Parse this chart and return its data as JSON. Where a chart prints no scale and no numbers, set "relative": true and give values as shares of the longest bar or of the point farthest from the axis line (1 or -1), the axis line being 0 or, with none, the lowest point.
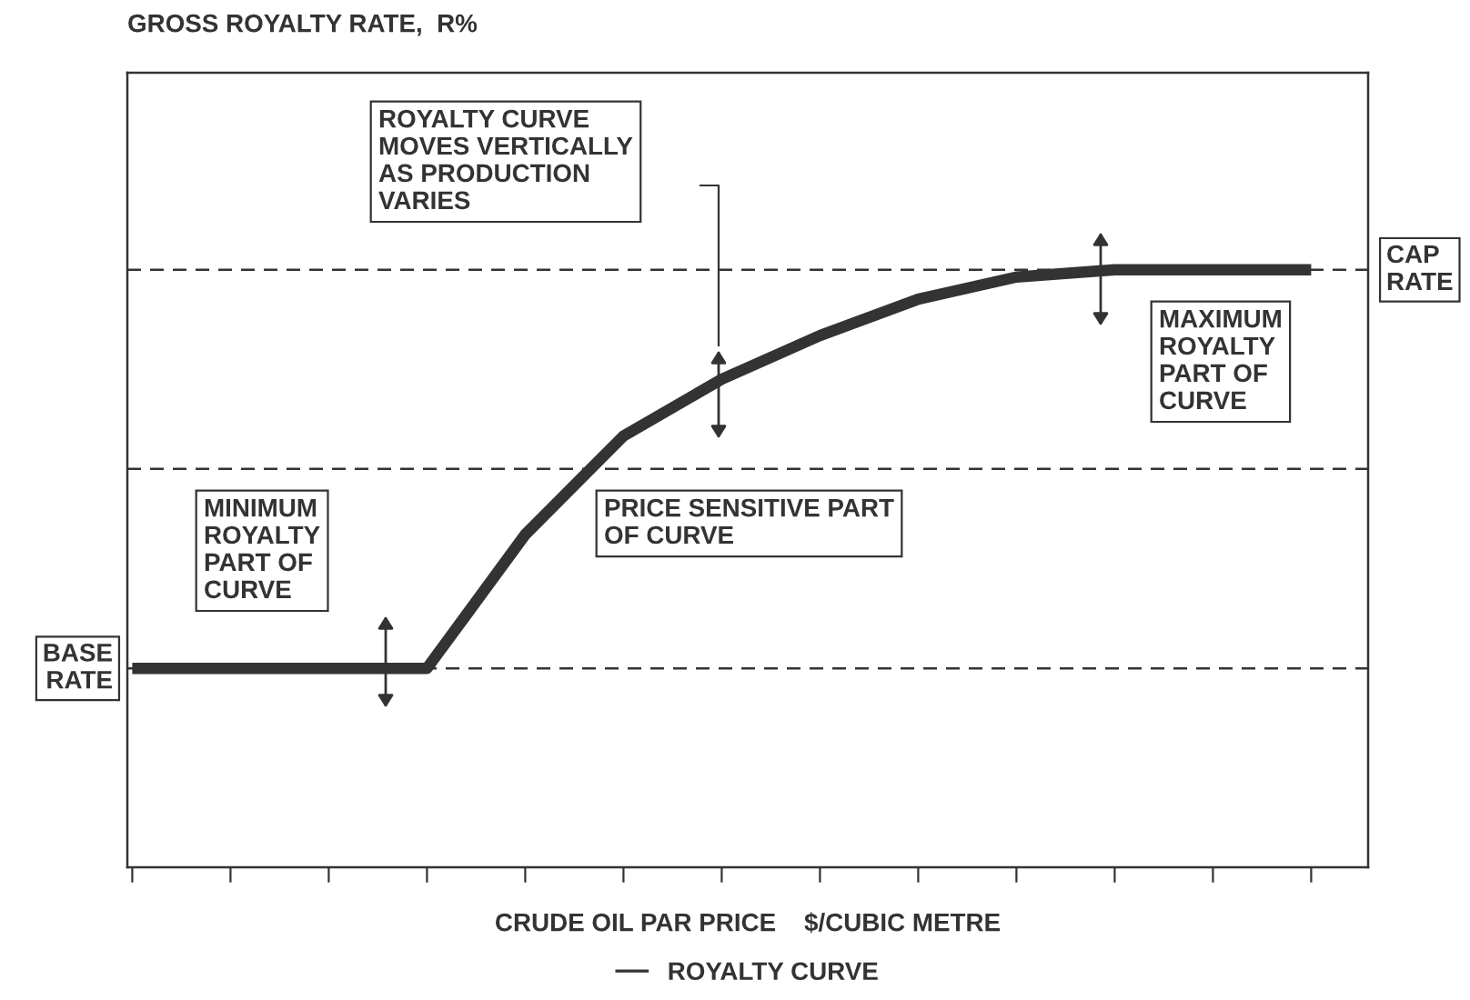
{
  "chart_data": {
    "type": "line",
    "title": "GROSS ROYALTY RATE,  R%",
    "xlabel": "CRUDE OIL PAR PRICE    $/CUBIC METRE",
    "categories": [
      null,
      null,
      null,
      null,
      null,
      null,
      null,
      null,
      null,
      null,
      null,
      null,
      null
    ],
    "relative": true,
    "series": [
      {
        "name": "ROYALTY CURVE",
        "color": "#333333",
        "values": [
          0.333,
          0.333,
          0.333,
          0.333,
          0.557,
          0.722,
          0.817,
          0.89,
          0.951,
          0.988,
          1,
          1,
          1
        ]
      }
    ],
    "ref_lines": [
      {
        "axis": "y",
        "value": 0.333,
        "label": "BASE\nRATE",
        "color": "#333333",
        "line_style": "dashed"
      },
      {
        "axis": "y",
        "value": 0.667,
        "label": null,
        "color": "#333333",
        "line_style": "dashed"
      },
      {
        "axis": "y",
        "value": 1,
        "label": "CAP\nRATE",
        "color": "#333333",
        "line_style": "dashed"
      }
    ],
    "annotations": [
      "ROYALTY CURVE\nMOVES VERTICALLY\nAS PRODUCTION\nVARIES",
      "MAXIMUM\nROYALTY\nPART OF\nCURVE",
      "MINIMUM\nROYALTY\nPART OF\nCURVE",
      "PRICE SENSITIVE PART\nOF CURVE"
    ],
    "legend": "bottom",
    "grid": false,
    "marker": "none",
    "line_style": "solid",
    "tick_labels": false
  }
}
